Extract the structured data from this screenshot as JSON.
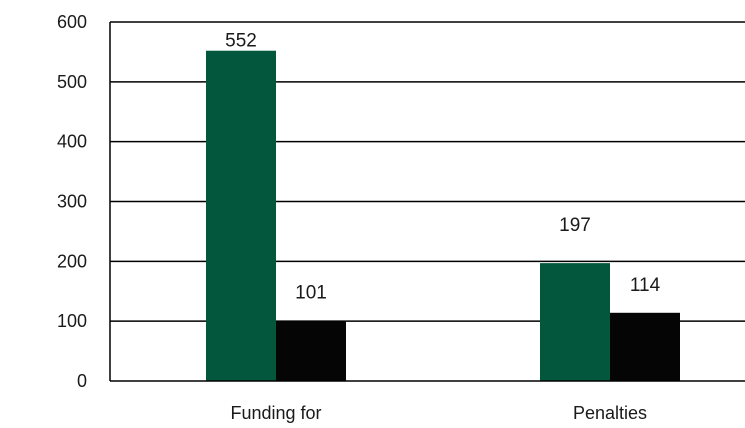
{
  "chart_data": {
    "type": "bar",
    "title": "",
    "xlabel": "",
    "ylabel": "",
    "categories": [
      "Funding for",
      "Penalties"
    ],
    "series": [
      {
        "values": [
          552,
          197
        ],
        "color": "#03573c"
      },
      {
        "values": [
          101,
          114
        ],
        "color": "#050505"
      }
    ],
    "ylim": [
      0,
      600
    ],
    "yticks": [
      0,
      100,
      200,
      300,
      400,
      500,
      600
    ],
    "grid": true,
    "legend": "none",
    "data_labels": true
  }
}
